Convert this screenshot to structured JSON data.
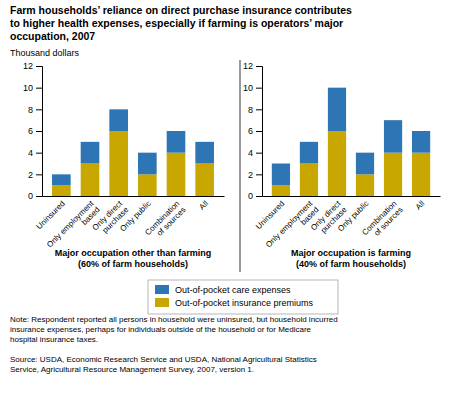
{
  "chart_data": [
    {
      "type": "bar",
      "stacked": true,
      "legend": "bottom",
      "title": "Farm households’ reliance on direct purchase insurance contributes\nto higher health expenses, especially if farming is operators’ major\noccupation, 2007",
      "ylabel": "Thousand dollars",
      "subtitle": "Major occupation other than farming\n(60% of farm households)",
      "categories": [
        "Uninsured",
        "Only employment\nbased",
        "Only direct\npurchase",
        "Only public",
        "Combination\nof sources",
        "All"
      ],
      "series": [
        {
          "name": "Out-of-pocket insurance premiums",
          "color": "#C8A800",
          "values": [
            1.0,
            3.0,
            6.0,
            2.0,
            4.0,
            3.0
          ]
        },
        {
          "name": "Out-of-pocket care expenses",
          "color": "#2E75B6",
          "values": [
            1.0,
            2.0,
            2.0,
            2.0,
            2.0,
            2.0
          ]
        }
      ],
      "ylim": [
        0,
        12
      ],
      "yticks": [
        0,
        2,
        4,
        6,
        8,
        10,
        12
      ],
      "annotations": [
        "Note: Respondent reported all persons in household were uninsured, but household incurred\ninsurance expenses, perhaps for individuals outside of the household or for Medicare\nhospital insurance taxes.",
        "Source:  USDA, Economic Research Service and USDA, National Agricultural Statistics\nService, Agricultural Resource Management Survey, 2007, version 1."
      ]
    },
    {
      "type": "bar",
      "stacked": true,
      "subtitle": "Major occupation is farming\n(40% of farm households)",
      "categories": [
        "Uninsured",
        "Only employment\nbased",
        "Only direct\npurchase",
        "Only public",
        "Combination\nof sources",
        "All"
      ],
      "series": [
        {
          "name": "Out-of-pocket insurance premiums",
          "color": "#C8A800",
          "values": [
            1.0,
            3.0,
            6.0,
            2.0,
            4.0,
            4.0
          ]
        },
        {
          "name": "Out-of-pocket care expenses",
          "color": "#2E75B6",
          "values": [
            2.0,
            2.0,
            4.0,
            2.0,
            3.0,
            2.0
          ]
        }
      ],
      "ylim": [
        0,
        12
      ],
      "yticks": [
        0,
        2,
        4,
        6,
        8,
        10,
        12
      ]
    }
  ]
}
